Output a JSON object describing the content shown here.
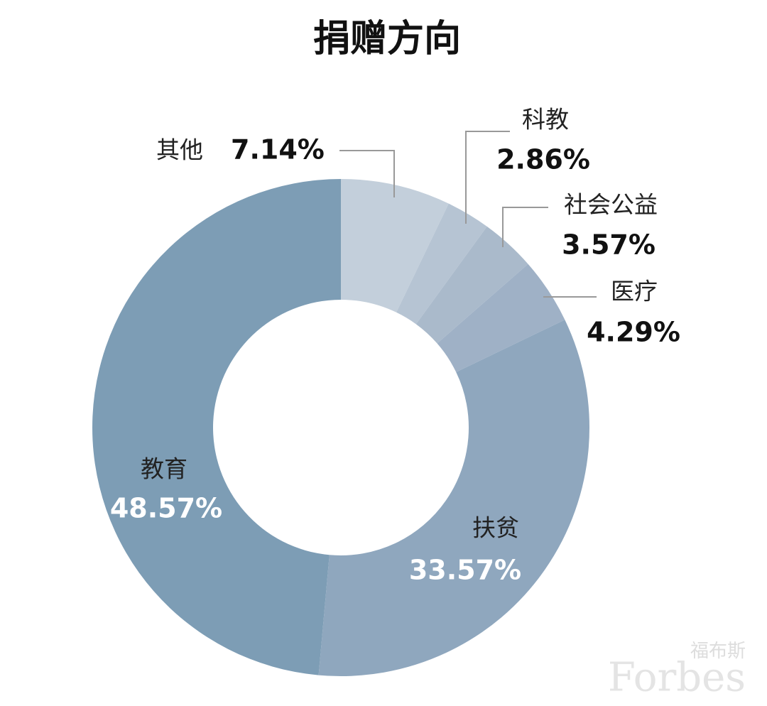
{
  "chart_data": {
    "type": "donut",
    "title": "捐赠方向",
    "categories": [
      "其他",
      "科教",
      "社会公益",
      "医疗",
      "扶贫",
      "教育"
    ],
    "values": [
      7.14,
      2.86,
      3.57,
      4.29,
      33.57,
      48.57
    ],
    "value_labels": [
      "7.14%",
      "2.86%",
      "3.57%",
      "4.29%",
      "33.57%",
      "48.57%"
    ],
    "colors": [
      "#c3cfdb",
      "#b6c4d3",
      "#aabacb",
      "#9fb1c6",
      "#8fa7be",
      "#7d9db5"
    ]
  },
  "watermark": {
    "cn": "福布斯",
    "en": "Forbes"
  }
}
